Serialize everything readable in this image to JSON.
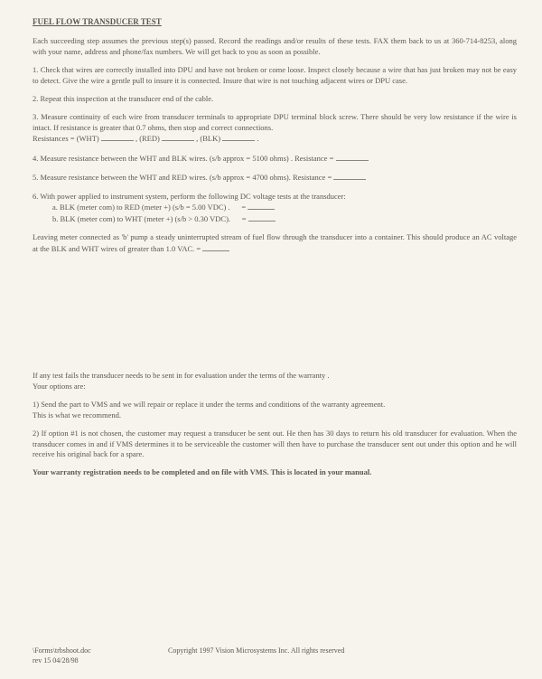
{
  "title": "FUEL FLOW TRANSDUCER TEST",
  "intro": "Each succeeding step assumes the previous step(s) passed. Record the readings and/or results of these tests. FAX them back to us at 360-714-8253, along with your name, address and phone/fax numbers. We will get back to you as soon as possible.",
  "step1": "1. Check that wires are correctly installed into DPU and have not broken or come loose. Inspect closely because a wire that has just broken may not be easy to detect. Give the wire a gentle pull to insure it is connected. Insure that wire is not touching adjacent wires or DPU case.",
  "step2": "2. Repeat this inspection at the transducer end of the cable.",
  "step3": "3. Measure continuity of each wire from transducer terminals to appropriate DPU terminal block screw. There should be very low resistance if the wire is intact. If resistance is greater that 0.7 ohms, then stop and correct connections.",
  "step3b_pre": "Resistances = (WHT)",
  "step3b_mid1": ", (RED)",
  "step3b_mid2": ", (BLK)",
  "step3b_end": ".",
  "step4_pre": "4. Measure resistance between the WHT and BLK wires. (s/b approx = 5100 ohms) .  Resistance =",
  "step5_pre": "5. Measure resistance between the WHT and RED wires. (s/b approx = 4700 ohms).  Resistance =",
  "step6": "6. With power applied to instrument system, perform the following DC voltage tests at the transducer:",
  "step6a_pre": "a. BLK (meter com) to RED (meter +)   (s/b = 5.00 VDC) .",
  "step6a_eq": "=",
  "step6b_pre": "b. BLK (meter com) to WHT (meter +)   (s/b > 0.30 VDC).",
  "step6b_eq": "=",
  "leaving_pre": "Leaving meter connected as 'b' pump a steady uninterrupted stream of fuel flow through the transducer into a container. This should produce an AC voltage at the BLK and WHT wires of greater than 1.0 VAC.  =",
  "fail1": "If  any test fails the transducer needs to be sent in for evaluation under the terms of the warranty .",
  "fail2": "Your options are:",
  "opt1a": "1)  Send the part to VMS and we will repair or replace it under the terms and conditions of the warranty agreement.",
  "opt1b": "This is what we recommend.",
  "opt2": "2)  If option  #1  is not chosen,  the customer  may  request a transducer be sent out.  He then has 30 days to return his old transducer for evaluation.  When the transducer comes in and if  VMS determines it to be serviceable the customer will then have to purchase the transducer sent out under this option and he will receive  his original back for a spare.",
  "warranty": "Your warranty registration needs to be completed and on file  with VMS.  This is located in your manual.",
  "footer_path": "\\Forms\\trbshoot.doc",
  "footer_rev": "rev 15 04/28/98",
  "footer_copy": "Copyright 1997 Vision Microsystems Inc. All rights reserved"
}
